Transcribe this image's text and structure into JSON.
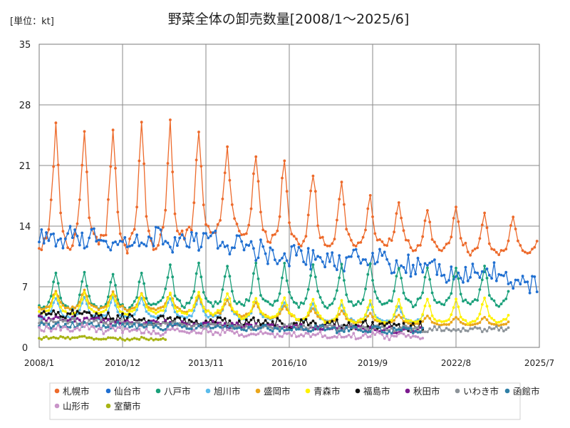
{
  "chart_data": {
    "type": "line",
    "title": "野菜全体の卸売数量[2008/1～2025/6]",
    "unit_label": "[単位：kt]",
    "x_start": "2008-01",
    "x_end": "2025-07",
    "xticks": [
      {
        "label": "2008/1",
        "date": "2008-01"
      },
      {
        "label": "2010/12",
        "date": "2010-12"
      },
      {
        "label": "2013/11",
        "date": "2013-11"
      },
      {
        "label": "2016/10",
        "date": "2016-10"
      },
      {
        "label": "2019/9",
        "date": "2019-09"
      },
      {
        "label": "2022/8",
        "date": "2022-08"
      },
      {
        "label": "2025/7",
        "date": "2025-07"
      }
    ],
    "ylim": [
      0,
      35
    ],
    "yticks": [
      0,
      7,
      14,
      21,
      28,
      35
    ],
    "grid": true,
    "legend_position": "bottom",
    "series": [
      {
        "name": "札幌市",
        "color": "#ED6A2B",
        "start": "2008-01",
        "end": "2025-06",
        "pattern": "seasonal",
        "base": [
          15,
          15,
          15,
          15,
          15,
          15.5,
          15.5,
          15,
          14.5,
          14,
          13.5,
          13,
          13,
          12.5,
          12.5,
          12,
          12,
          12
        ],
        "amp": [
          15,
          15,
          14,
          15,
          15,
          13,
          11,
          10,
          10,
          9,
          7.5,
          6,
          5,
          5,
          5,
          5,
          4.5,
          4.5
        ],
        "phase": 0
      },
      {
        "name": "仙台市",
        "color": "#1F6FD1",
        "start": "2008-01",
        "end": "2025-06",
        "pattern": "noisy",
        "base": [
          12.5,
          12.5,
          12,
          12,
          12.5,
          12.5,
          12,
          11.5,
          10.5,
          10.5,
          10,
          10,
          9.5,
          9,
          8.5,
          8.5,
          7.5,
          7
        ],
        "amp": 1.2,
        "phase": 1
      },
      {
        "name": "八戸市",
        "color": "#1AA07A",
        "start": "2008-01",
        "end": "2024-06",
        "pattern": "seasonal",
        "base": [
          5.5,
          5.5,
          5.5,
          5.5,
          6,
          6,
          6,
          6,
          6,
          6,
          6,
          6,
          6,
          6,
          6,
          6,
          6,
          6
        ],
        "amp": [
          4.5,
          4.5,
          4.5,
          4.5,
          5,
          5,
          5,
          5,
          5,
          5,
          5,
          5,
          4.5,
          4.5,
          4.5,
          4.5,
          4.5,
          4.5
        ],
        "phase": 2
      },
      {
        "name": "旭川市",
        "color": "#5BBCEB",
        "start": "2008-01",
        "end": "2021-06",
        "pattern": "seasonal",
        "base": [
          4,
          4,
          4,
          4,
          4,
          4,
          4,
          3.8,
          3.8,
          3.6,
          3.5,
          3.5,
          3.4,
          3.4,
          3.4,
          3.4,
          3.4,
          3.4
        ],
        "amp": [
          2.5,
          2.5,
          2.5,
          2.5,
          2.5,
          2.5,
          2.2,
          2.2,
          2,
          2,
          2,
          2,
          2,
          2,
          2,
          2,
          2,
          2
        ],
        "phase": 3
      },
      {
        "name": "盛岡市",
        "color": "#EAA61B",
        "start": "2008-01",
        "end": "2024-06",
        "pattern": "seasonal",
        "base": [
          5,
          5,
          5,
          4.8,
          4.8,
          4.5,
          4.2,
          4,
          3.8,
          3.5,
          3.3,
          3.1,
          3,
          2.9,
          2.8,
          2.8,
          2.8,
          2.8
        ],
        "amp": [
          2.2,
          2.2,
          2.2,
          2,
          2,
          2,
          1.8,
          1.6,
          1.5,
          1.4,
          1.3,
          1.2,
          1.1,
          1,
          1,
          1,
          1,
          1
        ],
        "phase": 4
      },
      {
        "name": "青森市",
        "color": "#FFF200",
        "start": "2008-01",
        "end": "2024-06",
        "pattern": "seasonal",
        "base": [
          4.5,
          4.5,
          4.5,
          4.5,
          4.5,
          4.5,
          4.5,
          4,
          4,
          3.8,
          3.5,
          3.5,
          3.5,
          3.5,
          3.5,
          3.5,
          3.5,
          3.5
        ],
        "amp": [
          2.5,
          2.5,
          2.5,
          2.5,
          2.5,
          2.5,
          2.5,
          2.5,
          2.5,
          2.6,
          2.6,
          2.6,
          2.8,
          2.8,
          2.8,
          3,
          3,
          3
        ],
        "phase": 5
      },
      {
        "name": "福島市",
        "color": "#111111",
        "start": "2008-01",
        "end": "2021-06",
        "pattern": "noisy",
        "base": [
          3.8,
          3.8,
          3.5,
          3.3,
          3.2,
          3,
          3,
          2.9,
          2.8,
          2.7,
          2.6,
          2.5,
          2.5,
          2.4,
          2.4,
          2.4,
          2.4,
          2.4
        ],
        "amp": 0.5,
        "phase": 6
      },
      {
        "name": "秋田市",
        "color": "#7B1A8E",
        "start": "2008-01",
        "end": "2021-06",
        "pattern": "noisy",
        "base": [
          3.3,
          3.2,
          3,
          2.9,
          2.8,
          2.7,
          2.6,
          2.5,
          2.4,
          2.3,
          2.2,
          2.1,
          2,
          2,
          2,
          2,
          2,
          2
        ],
        "amp": 0.35,
        "phase": 7
      },
      {
        "name": "いわき市",
        "color": "#8C9399",
        "start": "2008-01",
        "end": "2024-06",
        "pattern": "noisy",
        "base": [
          3,
          3,
          2.9,
          2.8,
          2.7,
          2.6,
          2.5,
          2.4,
          2.4,
          2.3,
          2.3,
          2.2,
          2.2,
          2.1,
          2.1,
          2.1,
          2.1,
          2.1
        ],
        "amp": 0.3,
        "phase": 8
      },
      {
        "name": "函館市",
        "color": "#2F7FA6",
        "start": "2008-01",
        "end": "2021-06",
        "pattern": "noisy",
        "base": [
          2.6,
          2.6,
          2.5,
          2.5,
          2.4,
          2.4,
          2.3,
          2.3,
          2.2,
          2.2,
          2.1,
          2.1,
          2,
          2,
          2,
          2,
          2,
          2
        ],
        "amp": 0.35,
        "phase": 9
      },
      {
        "name": "山形市",
        "color": "#C894C8",
        "start": "2008-01",
        "end": "2021-06",
        "pattern": "noisy",
        "base": [
          2.2,
          2.2,
          2,
          1.9,
          1.8,
          1.8,
          1.7,
          1.6,
          1.5,
          1.5,
          1.4,
          1.4,
          1.3,
          1.3,
          1.3,
          1.3,
          1.3,
          1.3
        ],
        "amp": 0.35,
        "phase": 10
      },
      {
        "name": "室蘭市",
        "color": "#A8B414",
        "start": "2008-01",
        "end": "2012-06",
        "pattern": "noisy",
        "base": [
          1.1,
          1.1,
          1,
          1,
          0.9,
          0.9,
          0.9,
          0.9,
          0.9,
          0.9,
          0.9,
          0.9,
          0.9,
          0.9,
          0.9,
          0.9,
          0.9,
          0.9
        ],
        "amp": 0.15,
        "phase": 11
      }
    ]
  }
}
